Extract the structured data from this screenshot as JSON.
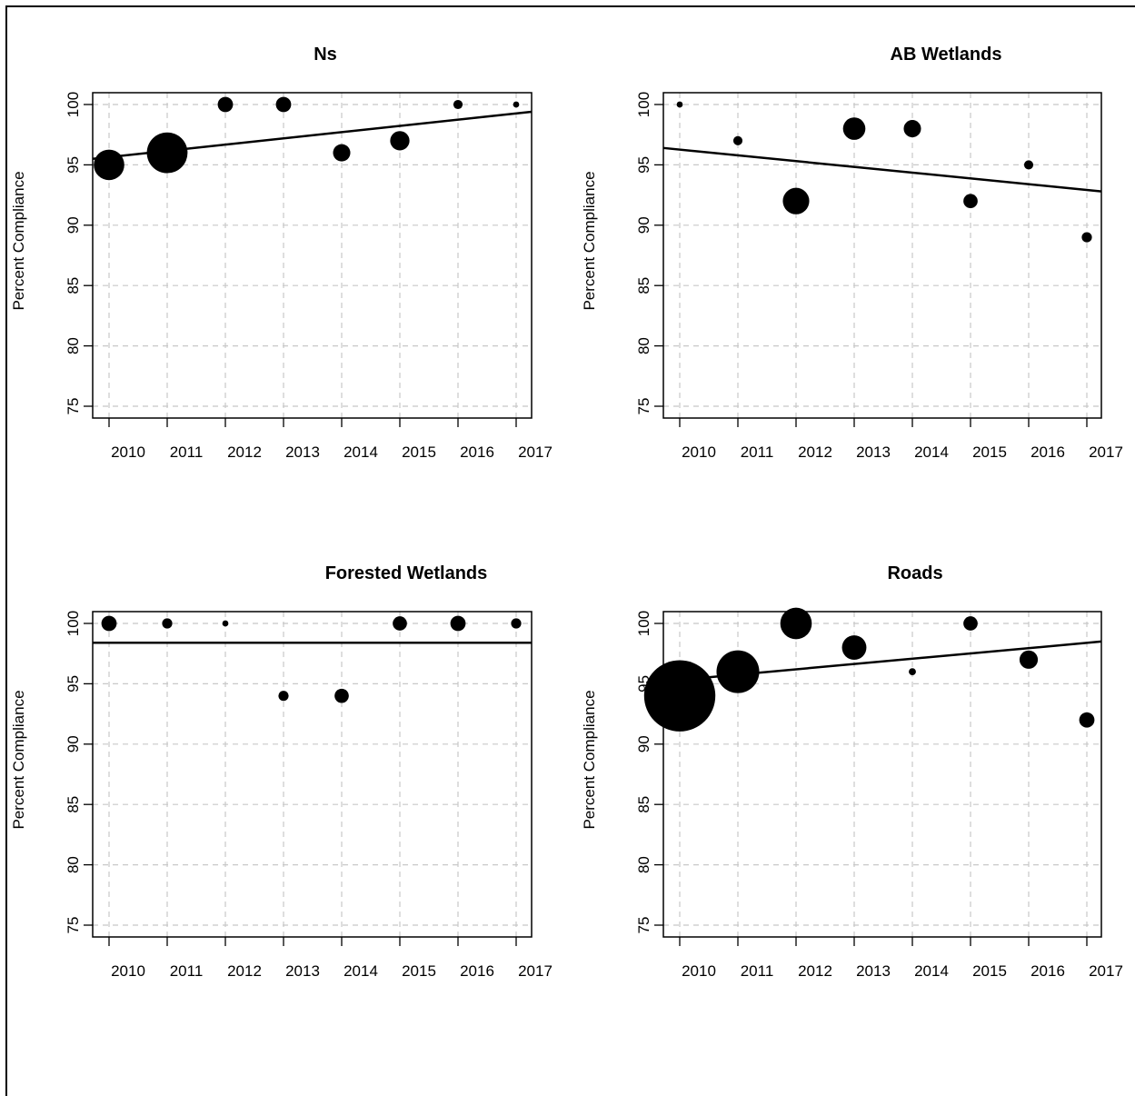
{
  "chart_data": [
    {
      "type": "scatter",
      "title": "Ns",
      "ylabel": "Percent Compliance",
      "xlabel": "",
      "x_ticks": [
        "2010",
        "2011",
        "2012",
        "2013",
        "2014",
        "2015",
        "2016",
        "2017"
      ],
      "y_ticks": [
        75,
        80,
        85,
        90,
        95,
        100
      ],
      "ylim": [
        74,
        101
      ],
      "grid": true,
      "points": [
        {
          "x": 2010,
          "y": 95,
          "size": 3
        },
        {
          "x": 2011,
          "y": 96,
          "size": 4
        },
        {
          "x": 2012,
          "y": 100,
          "size": 1.5
        },
        {
          "x": 2013,
          "y": 100,
          "size": 1.5
        },
        {
          "x": 2014,
          "y": 96,
          "size": 1.7
        },
        {
          "x": 2015,
          "y": 97,
          "size": 1.9
        },
        {
          "x": 2016,
          "y": 100,
          "size": 0.9
        },
        {
          "x": 2017,
          "y": 100,
          "size": 0.6
        }
      ],
      "trend": {
        "x0": 2010,
        "y0": 95.5,
        "x1": 2017,
        "y1": 99.4
      }
    },
    {
      "type": "scatter",
      "title": "AB Wetlands",
      "ylabel": "Percent Compliance",
      "xlabel": "",
      "x_ticks": [
        "2010",
        "2011",
        "2012",
        "2013",
        "2014",
        "2015",
        "2016",
        "2017"
      ],
      "y_ticks": [
        75,
        80,
        85,
        90,
        95,
        100
      ],
      "ylim": [
        74,
        101
      ],
      "grid": true,
      "points": [
        {
          "x": 2010,
          "y": 100,
          "size": 0.6
        },
        {
          "x": 2011,
          "y": 97,
          "size": 0.9
        },
        {
          "x": 2012,
          "y": 92,
          "size": 2.6
        },
        {
          "x": 2013,
          "y": 98,
          "size": 2.2
        },
        {
          "x": 2014,
          "y": 98,
          "size": 1.7
        },
        {
          "x": 2015,
          "y": 92,
          "size": 1.4
        },
        {
          "x": 2016,
          "y": 95,
          "size": 0.9
        },
        {
          "x": 2017,
          "y": 89,
          "size": 1.0
        }
      ],
      "trend": {
        "x0": 2010,
        "y0": 96.4,
        "x1": 2017,
        "y1": 92.8
      }
    },
    {
      "type": "scatter",
      "title": "Forested Wetlands",
      "ylabel": "Percent Compliance",
      "xlabel": "",
      "x_ticks": [
        "2010",
        "2011",
        "2012",
        "2013",
        "2014",
        "2015",
        "2016",
        "2017"
      ],
      "y_ticks": [
        75,
        80,
        85,
        90,
        95,
        100
      ],
      "ylim": [
        74,
        101
      ],
      "grid": true,
      "points": [
        {
          "x": 2010,
          "y": 100,
          "size": 1.5
        },
        {
          "x": 2011,
          "y": 100,
          "size": 1.0
        },
        {
          "x": 2012,
          "y": 100,
          "size": 0.6
        },
        {
          "x": 2013,
          "y": 94,
          "size": 1.0
        },
        {
          "x": 2014,
          "y": 94,
          "size": 1.4
        },
        {
          "x": 2015,
          "y": 100,
          "size": 1.4
        },
        {
          "x": 2016,
          "y": 100,
          "size": 1.5
        },
        {
          "x": 2017,
          "y": 100,
          "size": 1.0
        }
      ],
      "trend": {
        "x0": 2010,
        "y0": 98.4,
        "x1": 2017,
        "y1": 98.4
      }
    },
    {
      "type": "scatter",
      "title": "Roads",
      "ylabel": "Percent Compliance",
      "xlabel": "",
      "x_ticks": [
        "2010",
        "2011",
        "2012",
        "2013",
        "2014",
        "2015",
        "2016",
        "2017"
      ],
      "y_ticks": [
        75,
        80,
        85,
        90,
        95,
        100
      ],
      "ylim": [
        74,
        101
      ],
      "grid": true,
      "points": [
        {
          "x": 2010,
          "y": 94,
          "size": 7
        },
        {
          "x": 2011,
          "y": 96,
          "size": 4.2
        },
        {
          "x": 2012,
          "y": 100,
          "size": 3.1
        },
        {
          "x": 2013,
          "y": 98,
          "size": 2.4
        },
        {
          "x": 2014,
          "y": 96,
          "size": 0.7
        },
        {
          "x": 2015,
          "y": 100,
          "size": 1.4
        },
        {
          "x": 2016,
          "y": 97,
          "size": 1.8
        },
        {
          "x": 2017,
          "y": 92,
          "size": 1.5
        }
      ],
      "trend": {
        "x0": 2010,
        "y0": 95.2,
        "x1": 2017,
        "y1": 98.5
      }
    }
  ]
}
